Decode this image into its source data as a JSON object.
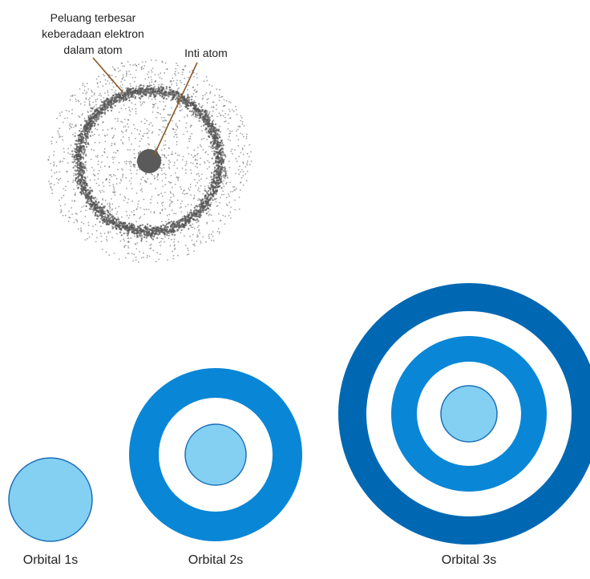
{
  "atom_diagram": {
    "label_probability": [
      "Peluang terbesar",
      "keberadaan elektron",
      "dalam atom"
    ],
    "label_nucleus": "Inti atom"
  },
  "orbitals": [
    {
      "label": "Orbital 1s"
    },
    {
      "label": "Orbital 2s"
    },
    {
      "label": "Orbital 3s"
    }
  ],
  "colors": {
    "dark_blue": "#0068b3",
    "mid_blue": "#0a86d6",
    "light_blue": "#84d0f2",
    "inner_stroke": "#1d6fb8",
    "cloud": "#555555",
    "pointer": "#8a5a2b",
    "label_text": "#222222"
  }
}
